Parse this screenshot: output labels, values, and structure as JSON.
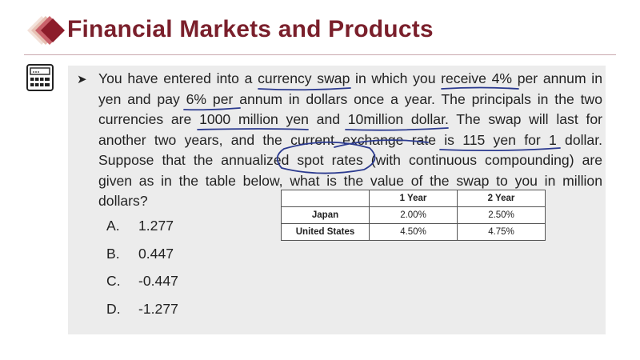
{
  "header": {
    "title": "Financial Markets and Products"
  },
  "question": {
    "text": "You have entered into a currency swap in which you receive 4% per annum in yen and pay 6% per annum in dollars once a year. The principals in the two currencies are 1000 million yen and 10million dollar. The swap will last for another two years, and the current exchange rate is 115 yen for 1 dollar. Suppose that the annualized spot rates (with continuous compounding) are given as in the table below, what is the value of the swap to you in million dollars?"
  },
  "options": [
    {
      "letter": "A.",
      "value": "1.277"
    },
    {
      "letter": "B.",
      "value": "0.447"
    },
    {
      "letter": "C.",
      "value": "-0.447"
    },
    {
      "letter": "D.",
      "value": "-1.277"
    }
  ],
  "rate_table": {
    "columns": [
      "",
      "1 Year",
      "2 Year"
    ],
    "rows": [
      {
        "label": "Japan",
        "y1": "2.00%",
        "y2": "2.50%"
      },
      {
        "label": "United States",
        "y1": "4.50%",
        "y2": "4.75%"
      }
    ]
  },
  "colors": {
    "title": "#7a1f2b",
    "panel": "#ececec",
    "annotation_ink": "#2b3a8f"
  },
  "icons": {
    "logo": "stacked-diamonds-logo",
    "side": "calculator-icon",
    "bullet": "arrow-bullet"
  }
}
